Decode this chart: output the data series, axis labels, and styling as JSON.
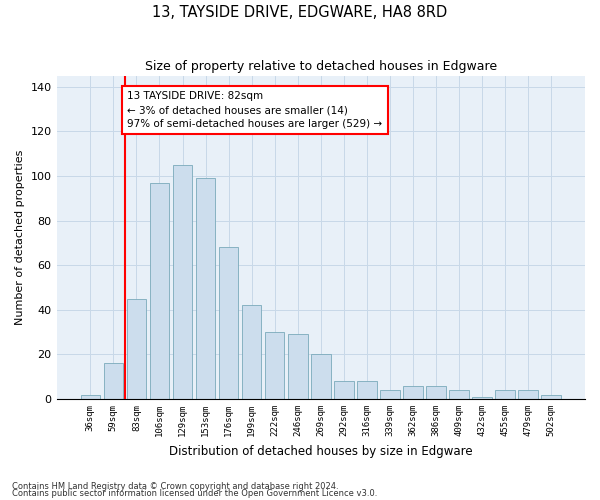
{
  "title": "13, TAYSIDE DRIVE, EDGWARE, HA8 8RD",
  "subtitle": "Size of property relative to detached houses in Edgware",
  "xlabel": "Distribution of detached houses by size in Edgware",
  "ylabel": "Number of detached properties",
  "categories": [
    "36sqm",
    "59sqm",
    "83sqm",
    "106sqm",
    "129sqm",
    "153sqm",
    "176sqm",
    "199sqm",
    "222sqm",
    "246sqm",
    "269sqm",
    "292sqm",
    "316sqm",
    "339sqm",
    "362sqm",
    "386sqm",
    "409sqm",
    "432sqm",
    "455sqm",
    "479sqm",
    "502sqm"
  ],
  "values": [
    2,
    16,
    45,
    97,
    105,
    99,
    68,
    42,
    30,
    29,
    20,
    8,
    8,
    4,
    6,
    6,
    4,
    1,
    4,
    4,
    2
  ],
  "bar_color": "#ccdded",
  "bar_edge_color": "#7aaabb",
  "annotation_text": "13 TAYSIDE DRIVE: 82sqm\n← 3% of detached houses are smaller (14)\n97% of semi-detached houses are larger (529) →",
  "annotation_box_color": "white",
  "annotation_box_edge": "red",
  "property_line_color": "red",
  "ylim": [
    0,
    145
  ],
  "yticks": [
    0,
    20,
    40,
    60,
    80,
    100,
    120,
    140
  ],
  "grid_color": "#c8d8e8",
  "bg_color": "#e8f0f8",
  "footer1": "Contains HM Land Registry data © Crown copyright and database right 2024.",
  "footer2": "Contains public sector information licensed under the Open Government Licence v3.0."
}
